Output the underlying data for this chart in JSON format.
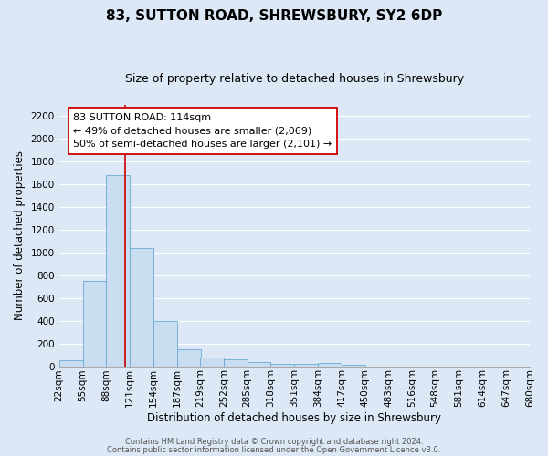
{
  "title": "83, SUTTON ROAD, SHREWSBURY, SY2 6DP",
  "subtitle": "Size of property relative to detached houses in Shrewsbury",
  "xlabel": "Distribution of detached houses by size in Shrewsbury",
  "ylabel": "Number of detached properties",
  "bar_color": "#c9ddf0",
  "bar_edge_color": "#6aaad4",
  "background_color": "#dce8f5",
  "plot_bg_color": "#dce8f5",
  "grid_color": "#ffffff",
  "bins": [
    22,
    55,
    88,
    121,
    154,
    187,
    219,
    252,
    285,
    318,
    351,
    384,
    417,
    450,
    483,
    516,
    548,
    581,
    614,
    647,
    680
  ],
  "bin_labels": [
    "22sqm",
    "55sqm",
    "88sqm",
    "121sqm",
    "154sqm",
    "187sqm",
    "219sqm",
    "252sqm",
    "285sqm",
    "318sqm",
    "351sqm",
    "384sqm",
    "417sqm",
    "450sqm",
    "483sqm",
    "516sqm",
    "548sqm",
    "581sqm",
    "614sqm",
    "647sqm",
    "680sqm"
  ],
  "counts": [
    50,
    750,
    1680,
    1040,
    400,
    145,
    80,
    60,
    35,
    20,
    20,
    25,
    15,
    0,
    0,
    0,
    0,
    0,
    0,
    0
  ],
  "ylim": [
    0,
    2300
  ],
  "yticks": [
    0,
    200,
    400,
    600,
    800,
    1000,
    1200,
    1400,
    1600,
    1800,
    2000,
    2200
  ],
  "vline_x": 114,
  "vline_color": "#cc0000",
  "annotation_title": "83 SUTTON ROAD: 114sqm",
  "annotation_line1": "← 49% of detached houses are smaller (2,069)",
  "annotation_line2": "50% of semi-detached houses are larger (2,101) →",
  "annotation_box_facecolor": "#ffffff",
  "annotation_box_edge": "#cc0000",
  "footer1": "Contains HM Land Registry data © Crown copyright and database right 2024.",
  "footer2": "Contains public sector information licensed under the Open Government Licence v3.0.",
  "title_fontsize": 11,
  "subtitle_fontsize": 9,
  "label_fontsize": 8.5,
  "tick_fontsize": 7.5,
  "annotation_fontsize": 8,
  "footer_fontsize": 6
}
